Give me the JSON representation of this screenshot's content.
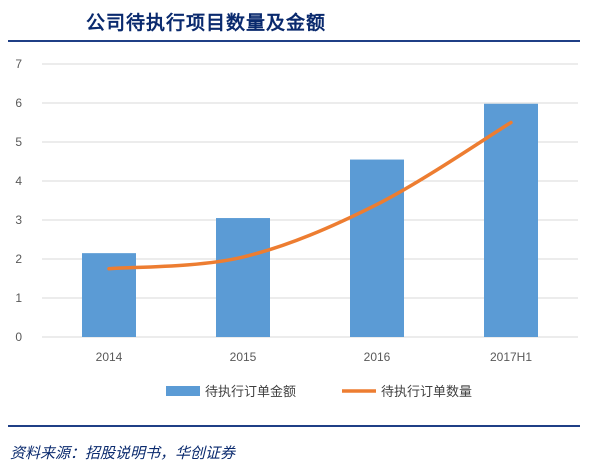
{
  "title": "公司待执行项目数量及金额",
  "source": "资料来源：招股说明书，华创证券",
  "colors": {
    "bar": "#5b9bd5",
    "line": "#ed7d31",
    "grid": "#d9d9d9",
    "rule": "#1f3f86"
  },
  "chart_data": {
    "type": "bar",
    "categories": [
      "2014",
      "2015",
      "2016",
      "2017H1"
    ],
    "series": [
      {
        "name": "待执行订单金额",
        "type": "bar",
        "values": [
          2.15,
          3.05,
          4.55,
          5.98
        ]
      },
      {
        "name": "待执行订单数量",
        "type": "line",
        "values": [
          1.75,
          2.05,
          3.4,
          5.5
        ]
      }
    ],
    "ylim": [
      0,
      7
    ],
    "yticks": [
      "0",
      "1",
      "2",
      "3",
      "4",
      "5",
      "6",
      "7"
    ],
    "grid": true,
    "legend": "bottom"
  }
}
